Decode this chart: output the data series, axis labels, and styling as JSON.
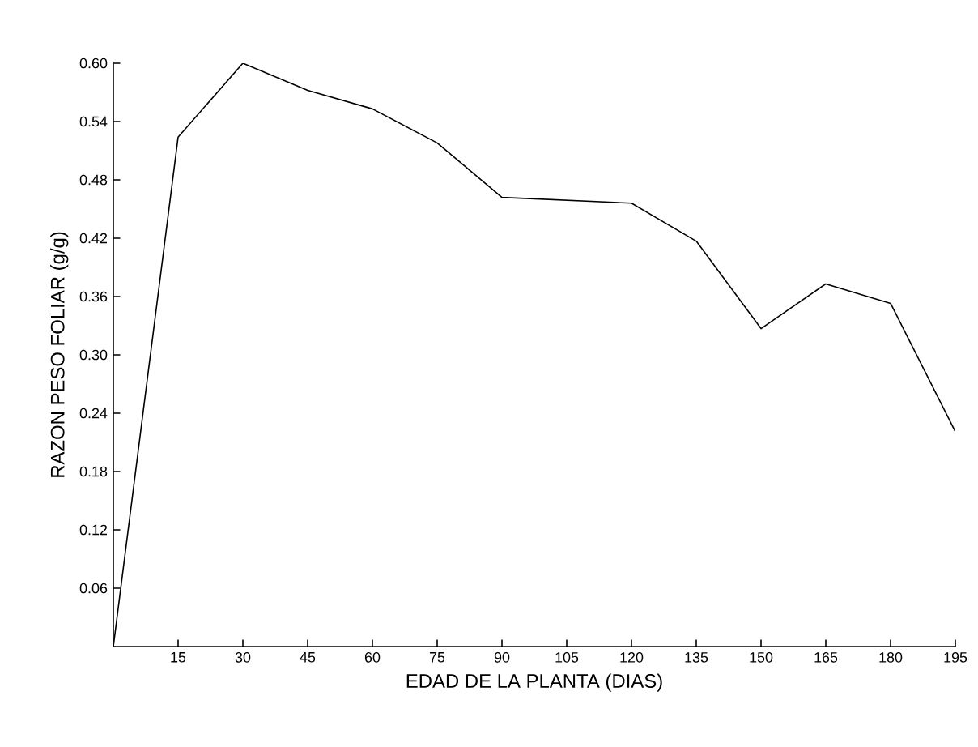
{
  "chart_data": {
    "type": "line",
    "xlabel": "EDAD DE LA PLANTA (DIAS)",
    "ylabel": "RAZON PESO FOLIAR (g/g)",
    "x": [
      0,
      15,
      30,
      45,
      60,
      75,
      90,
      105,
      120,
      135,
      150,
      165,
      180,
      195
    ],
    "series": [
      {
        "color": "#000000",
        "values": [
          0,
          0.524,
          0.6,
          0.572,
          0.553,
          0.518,
          0.462,
          0.459,
          0.456,
          0.417,
          0.327,
          0.373,
          0.353,
          0.221
        ]
      }
    ],
    "xlim": [
      0,
      195
    ],
    "xticks": [
      15,
      30,
      45,
      60,
      75,
      90,
      105,
      120,
      135,
      150,
      165,
      180,
      195
    ],
    "ylim": [
      0,
      0.6
    ],
    "yticks": [
      0.06,
      0.12,
      0.18,
      0.24,
      {
        "value": 0.3,
        "label": "0.30"
      },
      0.36,
      0.42,
      0.48,
      0.54,
      {
        "value": 0.6,
        "label": "0.60"
      }
    ],
    "grid": false,
    "marker": "none",
    "line_style": "solid"
  }
}
